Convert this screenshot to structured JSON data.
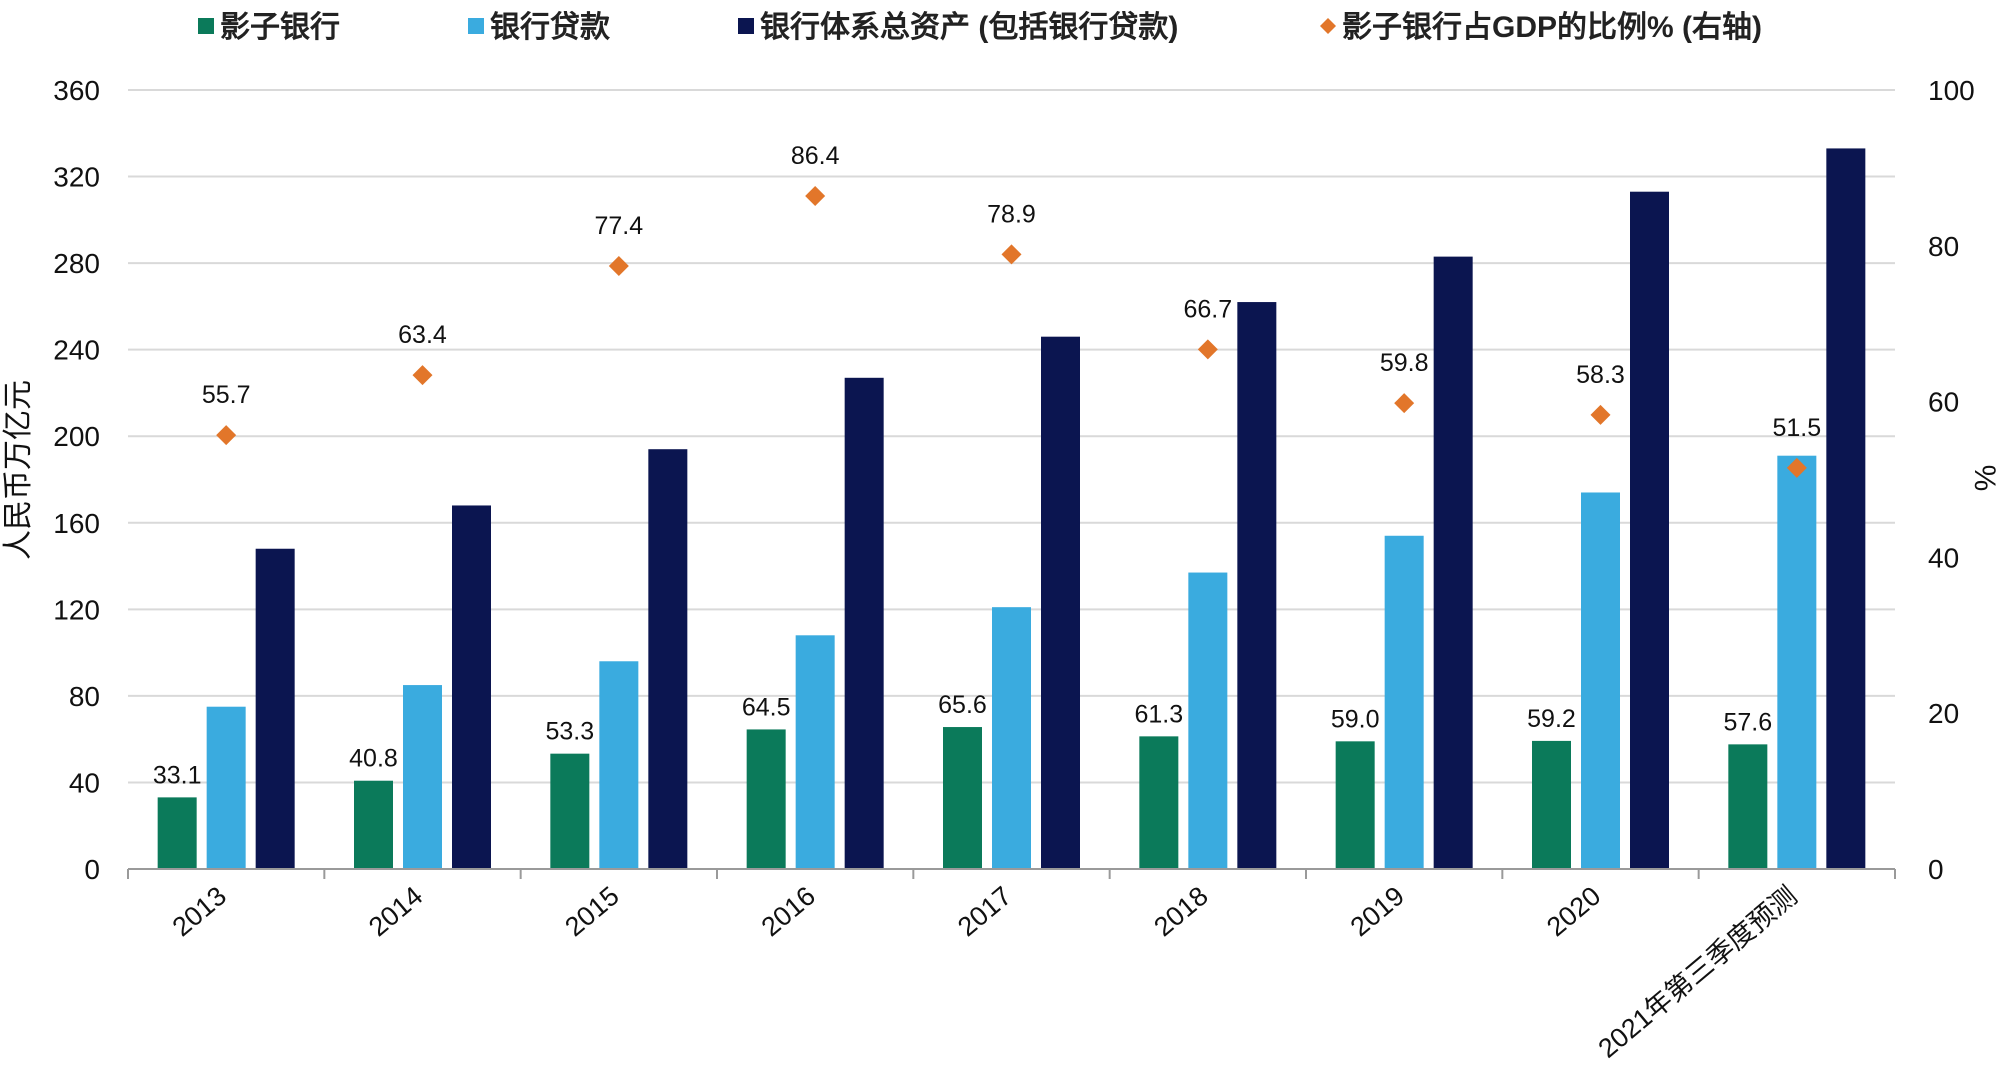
{
  "chart_data": {
    "type": "bar",
    "categories": [
      "2013",
      "2014",
      "2015",
      "2016",
      "2017",
      "2018",
      "2019",
      "2020",
      "2021年第三季度预测"
    ],
    "series": [
      {
        "name": "影子银行",
        "color": "#0b7a5a",
        "axis": "left",
        "values": [
          33.1,
          40.8,
          53.3,
          64.5,
          65.6,
          61.3,
          59.0,
          59.2,
          57.6
        ],
        "labels": [
          "33.1",
          "40.8",
          "53.3",
          "64.5",
          "65.6",
          "61.3",
          "59.0",
          "59.2",
          "57.6"
        ]
      },
      {
        "name": "银行贷款",
        "color": "#3aabdf",
        "axis": "left",
        "values": [
          75,
          85,
          96,
          108,
          121,
          137,
          154,
          174,
          191
        ]
      },
      {
        "name": "银行体系总资产 (包括银行贷款)",
        "color": "#0b1550",
        "axis": "left",
        "values": [
          148,
          168,
          194,
          227,
          246,
          262,
          283,
          313,
          333
        ]
      },
      {
        "name": "影子银行占GDP的比例% (右轴)",
        "color": "#e2762a",
        "axis": "right",
        "marker": "diamond",
        "values": [
          55.7,
          63.4,
          77.4,
          86.4,
          78.9,
          66.7,
          59.8,
          58.3,
          51.5
        ],
        "labels": [
          "55.7",
          "63.4",
          "77.4",
          "86.4",
          "78.9",
          "66.7",
          "59.8",
          "58.3",
          "51.5"
        ]
      }
    ],
    "ylabel": "人民币万亿元",
    "y2label": "%",
    "ylim": [
      0,
      360
    ],
    "yticks": [
      "0",
      "40",
      "80",
      "120",
      "160",
      "200",
      "240",
      "280",
      "320",
      "360"
    ],
    "y2lim": [
      0,
      100
    ],
    "y2ticks": [
      "0",
      "20",
      "40",
      "60",
      "80",
      "100"
    ],
    "grid": true,
    "legend_position": "top"
  }
}
